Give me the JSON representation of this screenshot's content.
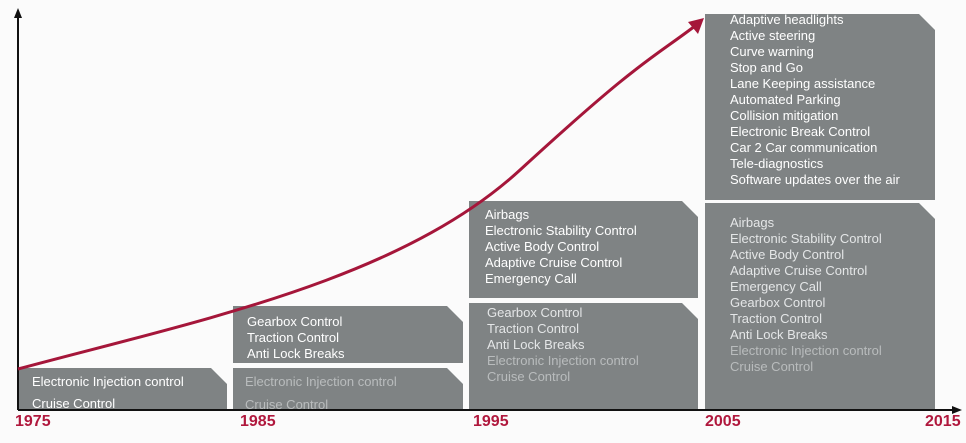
{
  "timeline": {
    "years": [
      "1975",
      "1985",
      "1995",
      "2005",
      "2015"
    ]
  },
  "boxes": [
    {
      "groups": [
        {
          "color": "#ffffff",
          "items": [
            "Electronic Injection control",
            "Cruise Control"
          ]
        }
      ]
    },
    {
      "groups": [
        {
          "color": "#ffffff",
          "items": [
            "Gearbox Control",
            "Traction Control",
            "Anti Lock Breaks"
          ]
        }
      ]
    },
    {
      "groups": [
        {
          "color": "#b9bcbd",
          "items": [
            "Electronic Injection control",
            "Cruise Control"
          ]
        }
      ]
    },
    {
      "groups": [
        {
          "color": "#ffffff",
          "items": [
            "Airbags",
            "Electronic Stability Control",
            "Active Body Control",
            "Adaptive Cruise Control",
            "Emergency Call"
          ]
        }
      ]
    },
    {
      "groups": [
        {
          "color": "#e4e6e7",
          "items": [
            "Gearbox Control",
            "Traction Control",
            "Anti Lock Breaks"
          ]
        },
        {
          "color": "#b9bcbd",
          "items": [
            "Electronic Injection control",
            "Cruise Control"
          ]
        }
      ]
    },
    {
      "groups": [
        {
          "color": "#ffffff",
          "items": [
            "Adaptive headlights",
            "Active steering",
            "Curve warning",
            "Stop and Go",
            "Lane Keeping assistance",
            "Automated Parking",
            "Collision mitigation",
            "Electronic Break Control",
            "Car 2 Car communication",
            "Tele-diagnostics",
            "Software updates over the air"
          ]
        }
      ]
    },
    {
      "groups": [
        {
          "color": "#e4e6e7",
          "items": [
            "Airbags",
            "Electronic Stability Control",
            "Active Body Control",
            "Adaptive Cruise Control",
            "Emergency Call",
            "Gearbox Control",
            "Traction Control",
            "Anti Lock Breaks"
          ]
        },
        {
          "color": "#b9bcbd",
          "items": [
            "Electronic Injection control",
            "Cruise Control"
          ]
        }
      ]
    }
  ]
}
